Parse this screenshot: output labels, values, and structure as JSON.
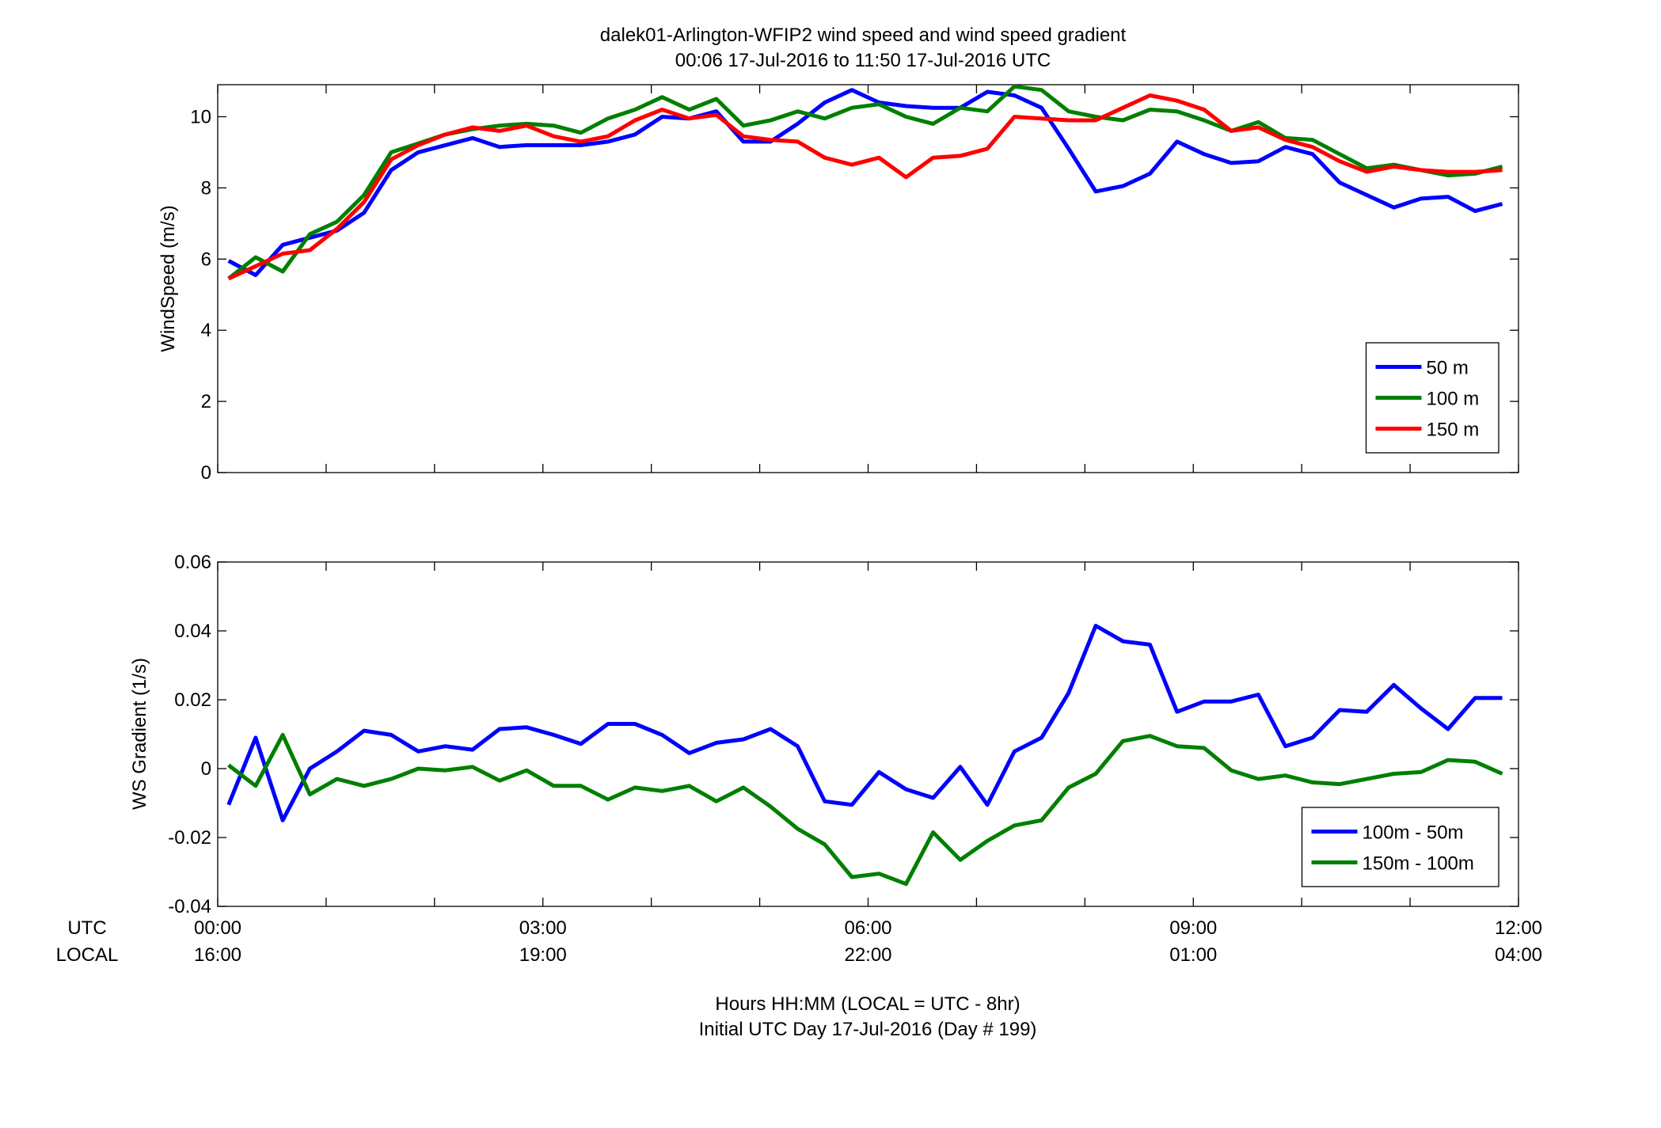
{
  "chart_data": {
    "title_line1": "dalek01-Arlington-WFIP2  wind speed and wind speed gradient",
    "title_line2": "00:06 17-Jul-2016 to 11:50 17-Jul-2016  UTC",
    "xlabel_line1": "Hours HH:MM  (LOCAL = UTC - 8hr)",
    "xlabel_line2": "Initial UTC Day 17-Jul-2016 (Day # 199)",
    "x_row_labels": [
      "UTC",
      "LOCAL"
    ],
    "x_range_hours": [
      0,
      12
    ],
    "x_ticks": [
      {
        "hour": 0,
        "utc": "00:00",
        "local": "16:00"
      },
      {
        "hour": 3,
        "utc": "03:00",
        "local": "19:00"
      },
      {
        "hour": 6,
        "utc": "06:00",
        "local": "22:00"
      },
      {
        "hour": 9,
        "utc": "09:00",
        "local": "01:00"
      },
      {
        "hour": 12,
        "utc": "12:00",
        "local": "04:00"
      }
    ],
    "x_hours": [
      0.1,
      0.35,
      0.6,
      0.85,
      1.1,
      1.35,
      1.6,
      1.85,
      2.1,
      2.35,
      2.6,
      2.85,
      3.1,
      3.35,
      3.6,
      3.85,
      4.1,
      4.35,
      4.6,
      4.85,
      5.1,
      5.35,
      5.6,
      5.85,
      6.1,
      6.35,
      6.6,
      6.85,
      7.1,
      7.35,
      7.6,
      7.85,
      8.1,
      8.35,
      8.6,
      8.85,
      9.1,
      9.35,
      9.6,
      9.85,
      10.1,
      10.35,
      10.6,
      10.85,
      11.1,
      11.35,
      11.6,
      11.85
    ],
    "panels": [
      {
        "type": "line",
        "ylabel": "WindSpeed (m/s)",
        "ylim": [
          0,
          10.9
        ],
        "yticks": [
          0,
          2,
          4,
          6,
          8,
          10
        ],
        "ytick_labels": [
          "0",
          "2",
          "4",
          "6",
          "8",
          "10"
        ],
        "legend_position": "bottom-right",
        "series": [
          {
            "name": "50 m",
            "color": "#0000ff",
            "values": [
              5.95,
              5.55,
              6.4,
              6.6,
              6.8,
              7.3,
              8.5,
              9.0,
              9.2,
              9.4,
              9.15,
              9.2,
              9.2,
              9.2,
              9.3,
              9.5,
              10.0,
              9.95,
              10.15,
              9.3,
              9.3,
              9.8,
              10.4,
              10.75,
              10.4,
              10.3,
              10.25,
              10.25,
              10.7,
              10.6,
              10.25,
              9.1,
              7.9,
              8.05,
              8.4,
              9.3,
              8.95,
              8.7,
              8.75,
              9.15,
              8.95,
              8.15,
              7.8,
              7.45,
              7.7,
              7.75,
              7.35,
              7.55
            ]
          },
          {
            "name": "100 m",
            "color": "#007f00",
            "values": [
              5.45,
              6.05,
              5.65,
              6.7,
              7.05,
              7.8,
              9.0,
              9.25,
              9.5,
              9.65,
              9.75,
              9.8,
              9.75,
              9.55,
              9.95,
              10.2,
              10.55,
              10.2,
              10.5,
              9.75,
              9.9,
              10.15,
              9.95,
              10.25,
              10.35,
              10.0,
              9.8,
              10.25,
              10.15,
              10.85,
              10.75,
              10.15,
              10.0,
              9.9,
              10.2,
              10.15,
              9.9,
              9.6,
              9.85,
              9.4,
              9.35,
              8.95,
              8.55,
              8.65,
              8.5,
              8.35,
              8.4,
              8.6
            ]
          },
          {
            "name": "150 m",
            "color": "#ff0000",
            "values": [
              5.45,
              5.8,
              6.15,
              6.25,
              6.85,
              7.6,
              8.8,
              9.2,
              9.5,
              9.7,
              9.6,
              9.75,
              9.45,
              9.3,
              9.45,
              9.9,
              10.2,
              9.95,
              10.05,
              9.45,
              9.35,
              9.3,
              8.85,
              8.65,
              8.85,
              8.3,
              8.85,
              8.9,
              9.1,
              10.0,
              9.95,
              9.9,
              9.9,
              10.25,
              10.6,
              10.45,
              10.2,
              9.6,
              9.7,
              9.35,
              9.15,
              8.75,
              8.45,
              8.6,
              8.5,
              8.45,
              8.45,
              8.5
            ]
          }
        ]
      },
      {
        "type": "line",
        "ylabel": "WS Gradient (1/s)",
        "ylim": [
          -0.04,
          0.06
        ],
        "yticks": [
          -0.04,
          -0.02,
          0,
          0.02,
          0.04,
          0.06
        ],
        "ytick_labels": [
          "-0.04",
          "-0.02",
          "0",
          "0.02",
          "0.04",
          "0.06"
        ],
        "legend_position": "bottom-right",
        "series": [
          {
            "name": "100m - 50m",
            "color": "#0000ff",
            "values": [
              -0.0105,
              0.009,
              -0.015,
              0.0,
              0.005,
              0.011,
              0.0098,
              0.005,
              0.0065,
              0.0055,
              0.0115,
              0.012,
              0.0098,
              0.0072,
              0.013,
              0.013,
              0.0098,
              0.0045,
              0.0075,
              0.0085,
              0.0115,
              0.0065,
              -0.0095,
              -0.0105,
              -0.001,
              -0.006,
              -0.0085,
              0.0005,
              -0.0105,
              0.005,
              0.009,
              0.022,
              0.0415,
              0.037,
              0.036,
              0.0165,
              0.0195,
              0.0195,
              0.0215,
              0.0065,
              0.009,
              0.017,
              0.0165,
              0.0243,
              0.0175,
              0.0115,
              0.0205,
              0.0205
            ]
          },
          {
            "name": "150m - 100m",
            "color": "#007f00",
            "values": [
              0.001,
              -0.005,
              0.0098,
              -0.0075,
              -0.003,
              -0.005,
              -0.003,
              0.0,
              -0.0005,
              0.0005,
              -0.0035,
              -0.0005,
              -0.005,
              -0.005,
              -0.009,
              -0.0055,
              -0.0065,
              -0.005,
              -0.0095,
              -0.0055,
              -0.011,
              -0.0175,
              -0.022,
              -0.0315,
              -0.0305,
              -0.0335,
              -0.0185,
              -0.0265,
              -0.021,
              -0.0165,
              -0.015,
              -0.0055,
              -0.0015,
              0.008,
              0.0095,
              0.0065,
              0.006,
              -0.0005,
              -0.003,
              -0.002,
              -0.004,
              -0.0045,
              -0.003,
              -0.0015,
              -0.001,
              0.0025,
              0.002,
              -0.0015
            ]
          }
        ]
      }
    ]
  }
}
